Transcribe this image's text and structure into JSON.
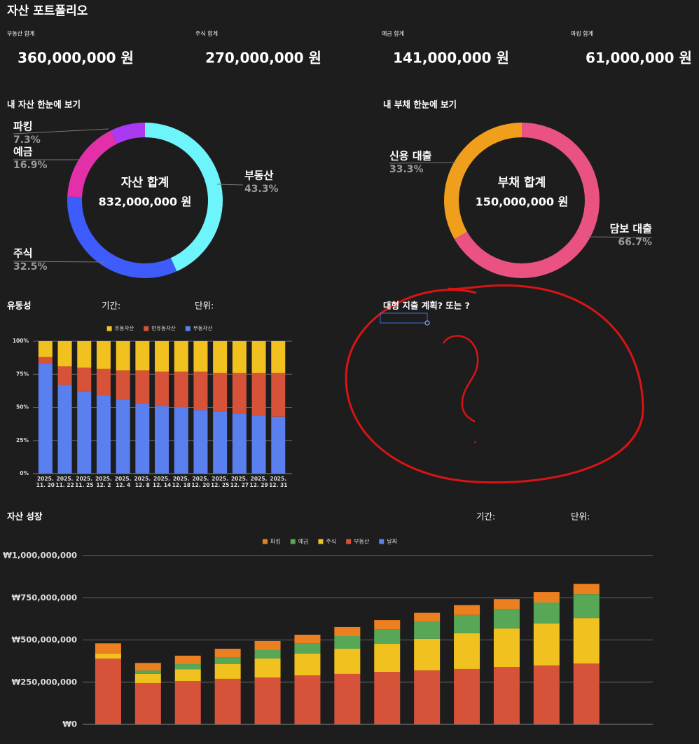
{
  "title": "자산 포트폴리오",
  "summary": [
    {
      "label": "부동산 합계",
      "value": "360,000,000 원"
    },
    {
      "label": "주식 합계",
      "value": "270,000,000 원"
    },
    {
      "label": "예금 합계",
      "value": "141,000,000 원"
    },
    {
      "label": "파킹 합계",
      "value": "61,000,000 원"
    }
  ],
  "annotation": {
    "text": "대형 지출 계획? 또는 ?"
  },
  "chart_data": [
    {
      "type": "donut",
      "title": "내 자산 한눈에 보기",
      "center_title": "자산 합계",
      "center_value": "832,000,000 원",
      "categories": [
        "부동산",
        "주식",
        "예금",
        "파킹"
      ],
      "values": [
        43.3,
        32.5,
        16.9,
        7.3
      ],
      "value_labels": [
        "43.3%",
        "32.5%",
        "16.9%",
        "7.3%"
      ],
      "colors": [
        "#6ef4fb",
        "#3d5cfb",
        "#e330a8",
        "#a93af2"
      ]
    },
    {
      "type": "donut",
      "title": "내 부채 한눈에 보기",
      "center_title": "부채 합계",
      "center_value": "150,000,000 원",
      "categories": [
        "담보 대출",
        "신용 대출"
      ],
      "values": [
        66.7,
        33.3
      ],
      "value_labels": [
        "66.7%",
        "33.3%"
      ],
      "colors": [
        "#ea5281",
        "#f09f1c"
      ]
    },
    {
      "type": "stacked_bar",
      "title": "유동성",
      "period_label": "기간:",
      "unit_label": "단위:",
      "categories": [
        "2025. 11. 20",
        "2025. 11. 22",
        "2025. 11. 25",
        "2025. 12. 2",
        "2025. 12. 4",
        "2025. 12. 8",
        "2025. 12. 14",
        "2025. 12. 18",
        "2025. 12. 20",
        "2025. 12. 25",
        "2025. 12. 27",
        "2025. 12. 29",
        "2025. 12. 31"
      ],
      "series": [
        {
          "name": "유동자산",
          "color": "#f1c21f",
          "values": [
            12,
            19,
            20,
            21,
            22,
            22,
            23,
            23,
            23,
            24,
            24,
            24,
            24
          ]
        },
        {
          "name": "반유동자산",
          "color": "#d6533a",
          "values": [
            5,
            14,
            18,
            20,
            22,
            25,
            26,
            27,
            29,
            29,
            31,
            32,
            33
          ]
        },
        {
          "name": "부동자산",
          "color": "#5a80ef",
          "values": [
            83,
            67,
            62,
            59,
            56,
            53,
            51,
            50,
            48,
            47,
            45,
            44,
            43
          ]
        }
      ],
      "ylim": [
        0,
        100
      ],
      "yticks": [
        {
          "value": 0,
          "label": "0%"
        },
        {
          "value": 25,
          "label": "25%"
        },
        {
          "value": 50,
          "label": "50%"
        },
        {
          "value": 75,
          "label": "75%"
        },
        {
          "value": 100,
          "label": "100%"
        }
      ],
      "grid": true,
      "legend": "top"
    },
    {
      "type": "stacked_bar",
      "title": "자산 성장",
      "period_label": "기간:",
      "unit_label": "단위:",
      "categories": [
        null,
        null,
        null,
        null,
        null,
        null,
        null,
        null,
        null,
        null,
        null,
        null,
        null
      ],
      "series": [
        {
          "name": "파킹",
          "color": "#ec7f1f",
          "values": [
            60000000,
            45000000,
            50000000,
            50000000,
            54000000,
            50000000,
            54000000,
            54000000,
            54000000,
            58000000,
            58000000,
            62000000,
            61000000
          ]
        },
        {
          "name": "예금",
          "color": "#58a756",
          "values": [
            0,
            20000000,
            30000000,
            41000000,
            50000000,
            62000000,
            75000000,
            87000000,
            100000000,
            108000000,
            116000000,
            124000000,
            141000000
          ]
        },
        {
          "name": "주식",
          "color": "#f1c21f",
          "values": [
            30000000,
            54000000,
            70000000,
            87000000,
            112000000,
            129000000,
            149000000,
            166000000,
            187000000,
            212000000,
            228000000,
            249000000,
            270000000
          ]
        },
        {
          "name": "부동산",
          "color": "#d6533a",
          "values": [
            390000000,
            245000000,
            257000000,
            270000000,
            278000000,
            290000000,
            299000000,
            311000000,
            320000000,
            328000000,
            340000000,
            349000000,
            360000000
          ]
        },
        {
          "name": "날짜",
          "color": "#5a80ef",
          "values": [
            null,
            null,
            null,
            null,
            null,
            null,
            null,
            null,
            null,
            null,
            null,
            null,
            null
          ]
        }
      ],
      "ylim": [
        0,
        1000000000
      ],
      "yticks": [
        {
          "value": 0,
          "label": "₩0"
        },
        {
          "value": 250000000,
          "label": "₩250,000,000"
        },
        {
          "value": 500000000,
          "label": "₩500,000,000"
        },
        {
          "value": 750000000,
          "label": "₩750,000,000"
        },
        {
          "value": 1000000000,
          "label": "₩1,000,000,000"
        }
      ],
      "grid": true,
      "legend": "top"
    }
  ]
}
